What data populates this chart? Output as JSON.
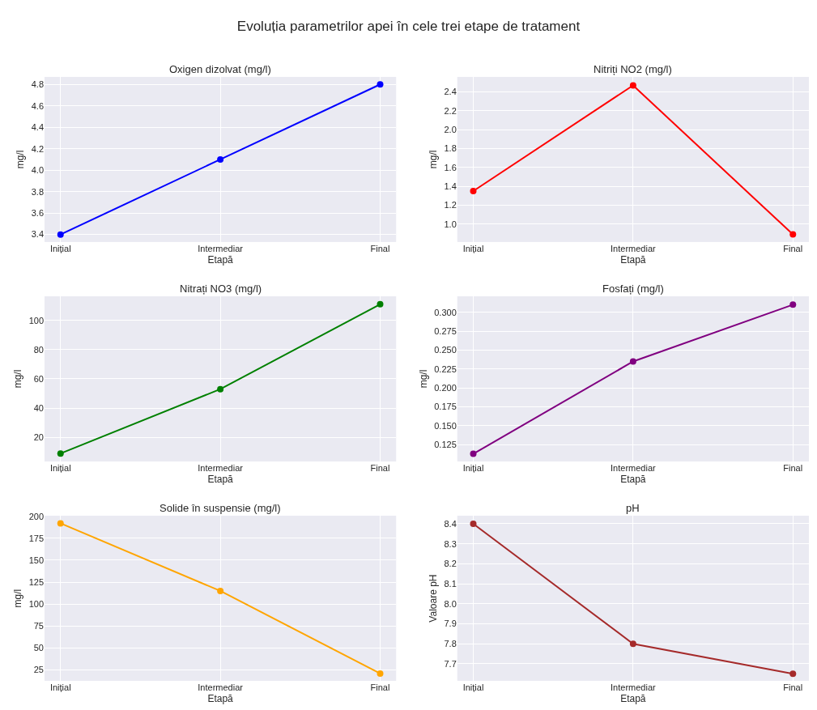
{
  "chart_data": [
    {
      "type": "other",
      "title": "Evoluția parametrilor apei în cele trei etape de tratament"
    },
    {
      "type": "line",
      "title": "Oxigen dizolvat (mg/l)",
      "xlabel": "Etapă",
      "ylabel": "mg/l",
      "categories": [
        "Inițial",
        "Intermediar",
        "Final"
      ],
      "series": [
        {
          "color": "#0000ff",
          "values": [
            3.4,
            4.1,
            4.8
          ]
        }
      ],
      "ylim": [
        3.33,
        4.87
      ],
      "yticks": [
        {
          "value": 3.4,
          "label": "3.4"
        },
        {
          "value": 3.6,
          "label": "3.6"
        },
        {
          "value": 3.8,
          "label": "3.8"
        },
        {
          "value": 4.0,
          "label": "4.0"
        },
        {
          "value": 4.2,
          "label": "4.2"
        },
        {
          "value": 4.4,
          "label": "4.4"
        },
        {
          "value": 4.6,
          "label": "4.6"
        },
        {
          "value": 4.8,
          "label": "4.8"
        }
      ],
      "grid": true,
      "marker": "circle",
      "line_style": "solid"
    },
    {
      "type": "line",
      "title": "Nitriți NO2 (mg/l)",
      "xlabel": "Etapă",
      "ylabel": "mg/l",
      "categories": [
        "Inițial",
        "Intermediar",
        "Final"
      ],
      "series": [
        {
          "color": "#ff0000",
          "values": [
            1.35,
            2.47,
            0.89
          ]
        }
      ],
      "ylim": [
        0.81,
        2.56
      ],
      "yticks": [
        {
          "value": 1.0,
          "label": "1.0"
        },
        {
          "value": 1.2,
          "label": "1.2"
        },
        {
          "value": 1.4,
          "label": "1.4"
        },
        {
          "value": 1.6,
          "label": "1.6"
        },
        {
          "value": 1.8,
          "label": "1.8"
        },
        {
          "value": 2.0,
          "label": "2.0"
        },
        {
          "value": 2.2,
          "label": "2.2"
        },
        {
          "value": 2.4,
          "label": "2.4"
        }
      ],
      "grid": true,
      "marker": "circle",
      "line_style": "solid"
    },
    {
      "type": "line",
      "title": "Nitrați NO3 (mg/l)",
      "xlabel": "Etapă",
      "ylabel": "mg/l",
      "categories": [
        "Inițial",
        "Intermediar",
        "Final"
      ],
      "series": [
        {
          "color": "#008000",
          "values": [
            9,
            53,
            111
          ]
        }
      ],
      "ylim": [
        3.6,
        116.4
      ],
      "yticks": [
        20,
        40,
        60,
        80,
        100
      ],
      "grid": true,
      "marker": "circle",
      "line_style": "solid"
    },
    {
      "type": "line",
      "title": "Fosfați (mg/l)",
      "xlabel": "Etapă",
      "ylabel": "mg/l",
      "categories": [
        "Inițial",
        "Intermediar",
        "Final"
      ],
      "series": [
        {
          "color": "#800080",
          "values": [
            0.113,
            0.235,
            0.31
          ]
        }
      ],
      "ylim": [
        0.103,
        0.321
      ],
      "yticks": [
        {
          "value": 0.125,
          "label": "0.125"
        },
        {
          "value": 0.15,
          "label": "0.150"
        },
        {
          "value": 0.175,
          "label": "0.175"
        },
        {
          "value": 0.2,
          "label": "0.200"
        },
        {
          "value": 0.225,
          "label": "0.225"
        },
        {
          "value": 0.25,
          "label": "0.250"
        },
        {
          "value": 0.275,
          "label": "0.275"
        },
        {
          "value": 0.3,
          "label": "0.300"
        }
      ],
      "grid": true,
      "marker": "circle",
      "line_style": "solid"
    },
    {
      "type": "line",
      "title": "Solide în suspensie (mg/l)",
      "xlabel": "Etapă",
      "ylabel": "mg/l",
      "categories": [
        "Inițial",
        "Intermediar",
        "Final"
      ],
      "series": [
        {
          "color": "#ffa500",
          "values": [
            192,
            115,
            21
          ]
        }
      ],
      "ylim": [
        12.6,
        200.6
      ],
      "yticks": [
        25,
        50,
        75,
        100,
        125,
        150,
        175,
        200
      ],
      "grid": true,
      "marker": "circle",
      "line_style": "solid"
    },
    {
      "type": "line",
      "title": "pH",
      "xlabel": "Etapă",
      "ylabel": "Valoare pH",
      "categories": [
        "Inițial",
        "Intermediar",
        "Final"
      ],
      "series": [
        {
          "color": "#a52a2a",
          "values": [
            8.4,
            7.8,
            7.65
          ]
        }
      ],
      "ylim": [
        7.615,
        8.44
      ],
      "yticks": [
        7.7,
        7.8,
        7.9,
        {
          "value": 8.0,
          "label": "8.0"
        },
        8.1,
        8.2,
        8.3,
        8.4
      ],
      "grid": true,
      "marker": "circle",
      "line_style": "solid"
    }
  ]
}
